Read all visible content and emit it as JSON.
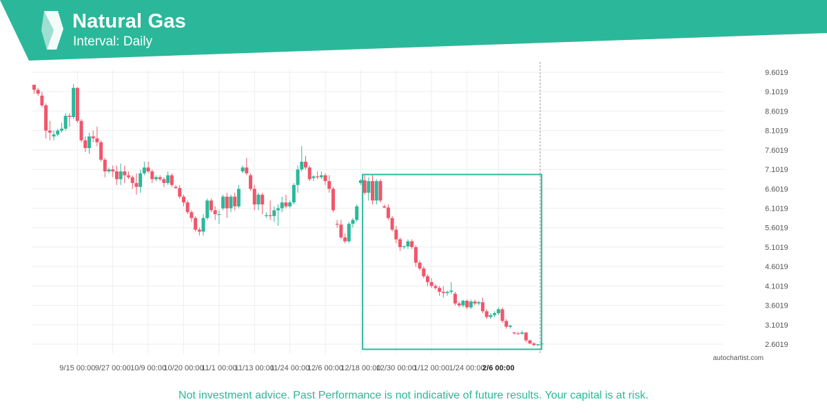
{
  "header": {
    "title": "Natural Gas",
    "subtitle": "Interval: Daily",
    "brand_color": "#2bb89a"
  },
  "watermark": "autochartist.com",
  "disclaimer": "Not investment advice. Past Performance is not indicative of future results. Your capital is at risk.",
  "colors": {
    "up": "#2bb89a",
    "down": "#f0566b",
    "grid": "#eeeeee",
    "pattern_box": "#2bb89a",
    "current_time_line": "#999999",
    "text": "#555555",
    "disclaimer_text": "#2bb89a"
  },
  "chart_data": {
    "type": "candlestick",
    "ylim": [
      2.3,
      9.8
    ],
    "y_ticks": [
      2.6019,
      3.1019,
      3.6019,
      4.1019,
      4.6019,
      5.1019,
      5.6019,
      6.1019,
      6.6019,
      7.1019,
      7.6019,
      8.1019,
      8.6019,
      9.1019,
      9.6019
    ],
    "y_tick_labels": [
      "2.6019",
      "3.1019",
      "3.6019",
      "4.1019",
      "4.6019",
      "5.1019",
      "5.6019",
      "6.1019",
      "6.6019",
      "7.1019",
      "7.6019",
      "8.1019",
      "8.6019",
      "9.1019",
      "9.6019"
    ],
    "x_tick_labels": [
      {
        "index": 11,
        "label": "9/15 00:00",
        "bold": false
      },
      {
        "index": 20,
        "label": "9/27 00:00",
        "bold": false
      },
      {
        "index": 29,
        "label": "10/9 00:00",
        "bold": false
      },
      {
        "index": 38,
        "label": "10/20 00:00",
        "bold": false
      },
      {
        "index": 47,
        "label": "11/1 00:00",
        "bold": false
      },
      {
        "index": 56,
        "label": "11/13 00:00",
        "bold": false
      },
      {
        "index": 65,
        "label": "11/24 00:00",
        "bold": false
      },
      {
        "index": 74,
        "label": "12/6 00:00",
        "bold": false
      },
      {
        "index": 83,
        "label": "12/18 00:00",
        "bold": false
      },
      {
        "index": 92,
        "label": "12/30 00:00",
        "bold": false
      },
      {
        "index": 101,
        "label": "1/12 00:00",
        "bold": false
      },
      {
        "index": 110,
        "label": "1/24 00:00",
        "bold": false
      },
      {
        "index": 118,
        "label": "2/6 00:00",
        "bold": true
      }
    ],
    "candles": [
      [
        9.28,
        9.28,
        9.05,
        9.15
      ],
      [
        9.15,
        9.2,
        9.0,
        9.05
      ],
      [
        9.0,
        9.1,
        8.7,
        8.75
      ],
      [
        8.75,
        8.8,
        7.9,
        8.1
      ],
      [
        8.1,
        8.35,
        7.85,
        8.05
      ],
      [
        7.95,
        8.1,
        7.85,
        8.0
      ],
      [
        8.0,
        8.15,
        7.95,
        8.1
      ],
      [
        8.1,
        8.3,
        8.05,
        8.15
      ],
      [
        8.15,
        8.55,
        8.1,
        8.48
      ],
      [
        8.48,
        8.55,
        8.2,
        8.45
      ],
      [
        8.45,
        9.3,
        8.4,
        9.2
      ],
      [
        9.2,
        9.22,
        8.3,
        8.35
      ],
      [
        8.35,
        8.4,
        7.8,
        7.85
      ],
      [
        7.85,
        7.95,
        7.55,
        7.65
      ],
      [
        7.65,
        8.05,
        7.5,
        7.95
      ],
      [
        7.95,
        8.1,
        7.8,
        7.9
      ],
      [
        7.9,
        8.2,
        7.7,
        7.8
      ],
      [
        7.8,
        7.85,
        7.3,
        7.35
      ],
      [
        7.35,
        7.4,
        6.9,
        7.05
      ],
      [
        7.05,
        7.15,
        7.0,
        7.1
      ],
      [
        7.1,
        7.2,
        6.9,
        7.05
      ],
      [
        7.05,
        7.2,
        6.7,
        6.85
      ],
      [
        6.85,
        7.25,
        6.7,
        7.05
      ],
      [
        7.05,
        7.2,
        6.75,
        6.95
      ],
      [
        6.95,
        7.05,
        6.85,
        6.9
      ],
      [
        6.9,
        6.95,
        6.6,
        6.75
      ],
      [
        6.75,
        7.0,
        6.45,
        6.65
      ],
      [
        6.65,
        7.1,
        6.5,
        7.0
      ],
      [
        7.0,
        7.3,
        6.95,
        7.15
      ],
      [
        7.15,
        7.3,
        7.0,
        7.05
      ],
      [
        7.05,
        7.1,
        6.75,
        6.85
      ],
      [
        6.85,
        6.95,
        6.8,
        6.9
      ],
      [
        6.9,
        6.95,
        6.8,
        6.85
      ],
      [
        6.85,
        6.9,
        6.65,
        6.75
      ],
      [
        6.75,
        7.05,
        6.7,
        6.95
      ],
      [
        6.95,
        7.0,
        6.65,
        6.7
      ],
      [
        6.65,
        6.7,
        6.6,
        6.62
      ],
      [
        6.62,
        6.7,
        6.35,
        6.4
      ],
      [
        6.4,
        6.45,
        6.15,
        6.25
      ],
      [
        6.25,
        6.3,
        5.95,
        6.0
      ],
      [
        6.0,
        6.05,
        5.75,
        5.85
      ],
      [
        5.85,
        5.9,
        5.5,
        5.55
      ],
      [
        5.55,
        5.6,
        5.4,
        5.5
      ],
      [
        5.5,
        5.95,
        5.4,
        5.85
      ],
      [
        5.85,
        6.35,
        5.8,
        6.3
      ],
      [
        6.3,
        6.35,
        6.0,
        6.05
      ],
      [
        6.05,
        6.15,
        5.8,
        5.95
      ],
      [
        5.95,
        6.05,
        5.7,
        5.95
      ],
      [
        6.1,
        6.45,
        6.05,
        6.4
      ],
      [
        6.4,
        6.5,
        5.85,
        6.1
      ],
      [
        6.1,
        6.45,
        6.0,
        6.4
      ],
      [
        6.4,
        6.5,
        6.05,
        6.15
      ],
      [
        6.15,
        6.7,
        6.1,
        6.6
      ],
      [
        7.05,
        7.2,
        7.0,
        7.15
      ],
      [
        7.15,
        7.4,
        6.95,
        7.0
      ],
      [
        6.95,
        7.0,
        6.55,
        6.6
      ],
      [
        6.6,
        6.7,
        6.05,
        6.2
      ],
      [
        6.2,
        6.5,
        6.05,
        6.45
      ],
      [
        6.45,
        6.5,
        5.95,
        6.2
      ],
      [
        5.9,
        6.0,
        5.85,
        5.92
      ],
      [
        5.92,
        6.3,
        5.8,
        5.9
      ],
      [
        5.9,
        6.15,
        5.75,
        6.05
      ],
      [
        6.05,
        6.2,
        5.65,
        6.1
      ],
      [
        6.1,
        6.4,
        6.0,
        6.25
      ],
      [
        6.25,
        6.45,
        6.1,
        6.15
      ],
      [
        6.15,
        6.3,
        6.1,
        6.25
      ],
      [
        6.25,
        6.75,
        6.2,
        6.7
      ],
      [
        6.7,
        7.2,
        6.5,
        7.1
      ],
      [
        7.1,
        7.7,
        7.05,
        7.3
      ],
      [
        7.3,
        7.45,
        7.1,
        7.15
      ],
      [
        7.15,
        7.2,
        6.8,
        6.85
      ],
      [
        6.88,
        6.95,
        6.8,
        6.92
      ],
      [
        6.92,
        7.05,
        6.85,
        6.9
      ],
      [
        6.9,
        7.05,
        6.85,
        6.95
      ],
      [
        6.95,
        7.0,
        6.7,
        6.8
      ],
      [
        6.8,
        6.95,
        6.5,
        6.6
      ],
      [
        6.6,
        6.65,
        6.0,
        6.05
      ],
      [
        5.7,
        5.8,
        5.6,
        5.68
      ],
      [
        5.68,
        5.8,
        5.3,
        5.35
      ],
      [
        5.35,
        5.45,
        5.2,
        5.25
      ],
      [
        5.25,
        5.75,
        5.2,
        5.7
      ],
      [
        5.7,
        5.85,
        5.6,
        5.8
      ],
      [
        5.8,
        6.2,
        5.75,
        6.15
      ],
      [
        6.75,
        6.85,
        6.7,
        6.82
      ],
      [
        6.82,
        6.95,
        6.45,
        6.5
      ],
      [
        6.5,
        6.9,
        6.3,
        6.8
      ],
      [
        6.8,
        6.95,
        6.2,
        6.3
      ],
      [
        6.3,
        6.85,
        6.2,
        6.8
      ],
      [
        6.8,
        6.85,
        6.25,
        6.3
      ],
      [
        6.15,
        6.2,
        6.1,
        6.12
      ],
      [
        6.12,
        6.2,
        5.8,
        5.85
      ],
      [
        5.85,
        5.9,
        5.5,
        5.55
      ],
      [
        5.55,
        5.65,
        5.2,
        5.3
      ],
      [
        5.3,
        5.35,
        5.0,
        5.1
      ],
      [
        5.1,
        5.15,
        5.05,
        5.12
      ],
      [
        5.12,
        5.3,
        5.05,
        5.25
      ],
      [
        5.25,
        5.3,
        5.05,
        5.1
      ],
      [
        5.1,
        5.15,
        4.6,
        4.7
      ],
      [
        4.7,
        4.75,
        4.5,
        4.55
      ],
      [
        4.55,
        4.6,
        4.3,
        4.35
      ],
      [
        4.35,
        4.4,
        4.1,
        4.2
      ],
      [
        4.2,
        4.3,
        4.05,
        4.1
      ],
      [
        4.1,
        4.15,
        4.0,
        4.05
      ],
      [
        4.05,
        4.1,
        3.85,
        3.95
      ],
      [
        3.95,
        4.1,
        3.8,
        3.92
      ],
      [
        3.92,
        3.98,
        3.85,
        3.95
      ],
      [
        3.95,
        4.2,
        3.9,
        3.98
      ],
      [
        3.9,
        3.95,
        3.6,
        3.65
      ],
      [
        3.65,
        3.7,
        3.55,
        3.6
      ],
      [
        3.6,
        3.75,
        3.55,
        3.72
      ],
      [
        3.72,
        3.75,
        3.5,
        3.55
      ],
      [
        3.55,
        3.75,
        3.5,
        3.7
      ],
      [
        3.7,
        3.75,
        3.6,
        3.65
      ],
      [
        3.65,
        3.72,
        3.6,
        3.68
      ],
      [
        3.68,
        3.8,
        3.4,
        3.45
      ],
      [
        3.45,
        3.5,
        3.25,
        3.3
      ],
      [
        3.3,
        3.4,
        3.25,
        3.35
      ],
      [
        3.35,
        3.45,
        3.3,
        3.4
      ],
      [
        3.4,
        3.55,
        3.35,
        3.5
      ],
      [
        3.5,
        3.55,
        3.15,
        3.2
      ],
      [
        3.2,
        3.25,
        3.0,
        3.05
      ],
      [
        3.05,
        3.1,
        3.0,
        3.08
      ],
      [
        2.9,
        2.92,
        2.85,
        2.88
      ],
      [
        2.88,
        2.92,
        2.85,
        2.87
      ],
      [
        2.87,
        2.95,
        2.85,
        2.9
      ],
      [
        2.9,
        2.92,
        2.65,
        2.7
      ],
      [
        2.7,
        2.72,
        2.6,
        2.62
      ],
      [
        2.62,
        2.65,
        2.55,
        2.58
      ],
      [
        2.58,
        2.6,
        2.55,
        2.6
      ],
      [
        2.6,
        2.65,
        2.58,
        2.62
      ]
    ],
    "pattern_box": {
      "start_index": 84,
      "end_index": 130,
      "y_low": 2.47,
      "y_high": 6.97
    },
    "current_time_index": 130
  }
}
